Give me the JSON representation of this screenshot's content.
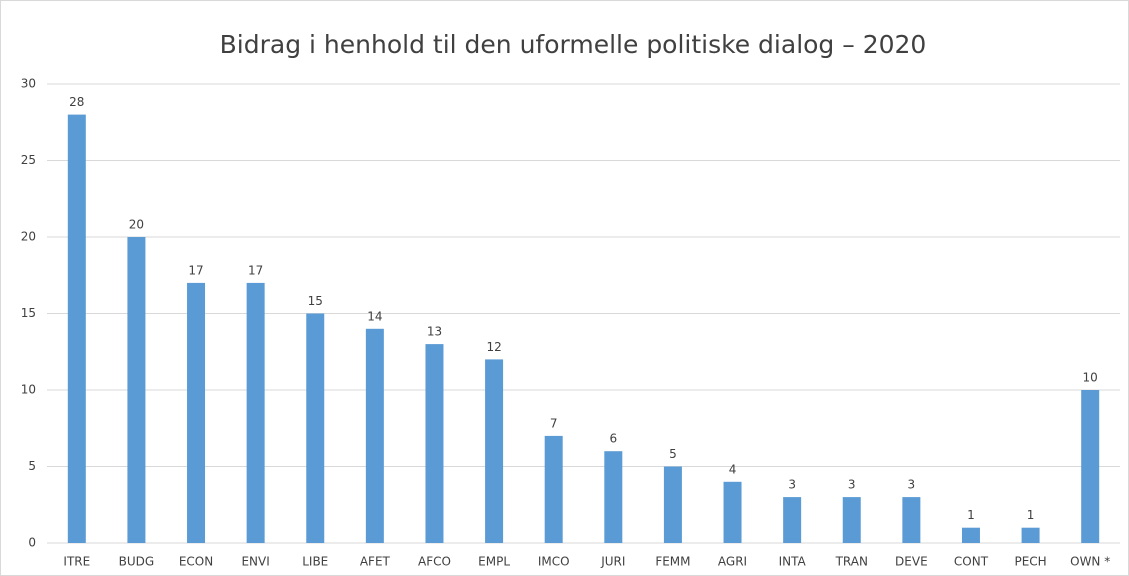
{
  "chart_data": {
    "type": "bar",
    "title": "Bidrag i henhold til den uformelle politiske dialog – 2020",
    "categories": [
      "ITRE",
      "BUDG",
      "ECON",
      "ENVI",
      "LIBE",
      "AFET",
      "AFCO",
      "EMPL",
      "IMCO",
      "JURI",
      "FEMM",
      "AGRI",
      "INTA",
      "TRAN",
      "DEVE",
      "CONT",
      "PECH",
      "OWN *"
    ],
    "values": [
      28,
      20,
      17,
      17,
      15,
      14,
      13,
      12,
      7,
      6,
      5,
      4,
      3,
      3,
      3,
      1,
      1,
      10
    ],
    "color": "#5b9bd5",
    "ylim": [
      0,
      30
    ],
    "yticks": [
      0,
      5,
      10,
      15,
      20,
      25,
      30
    ],
    "grid": true
  }
}
